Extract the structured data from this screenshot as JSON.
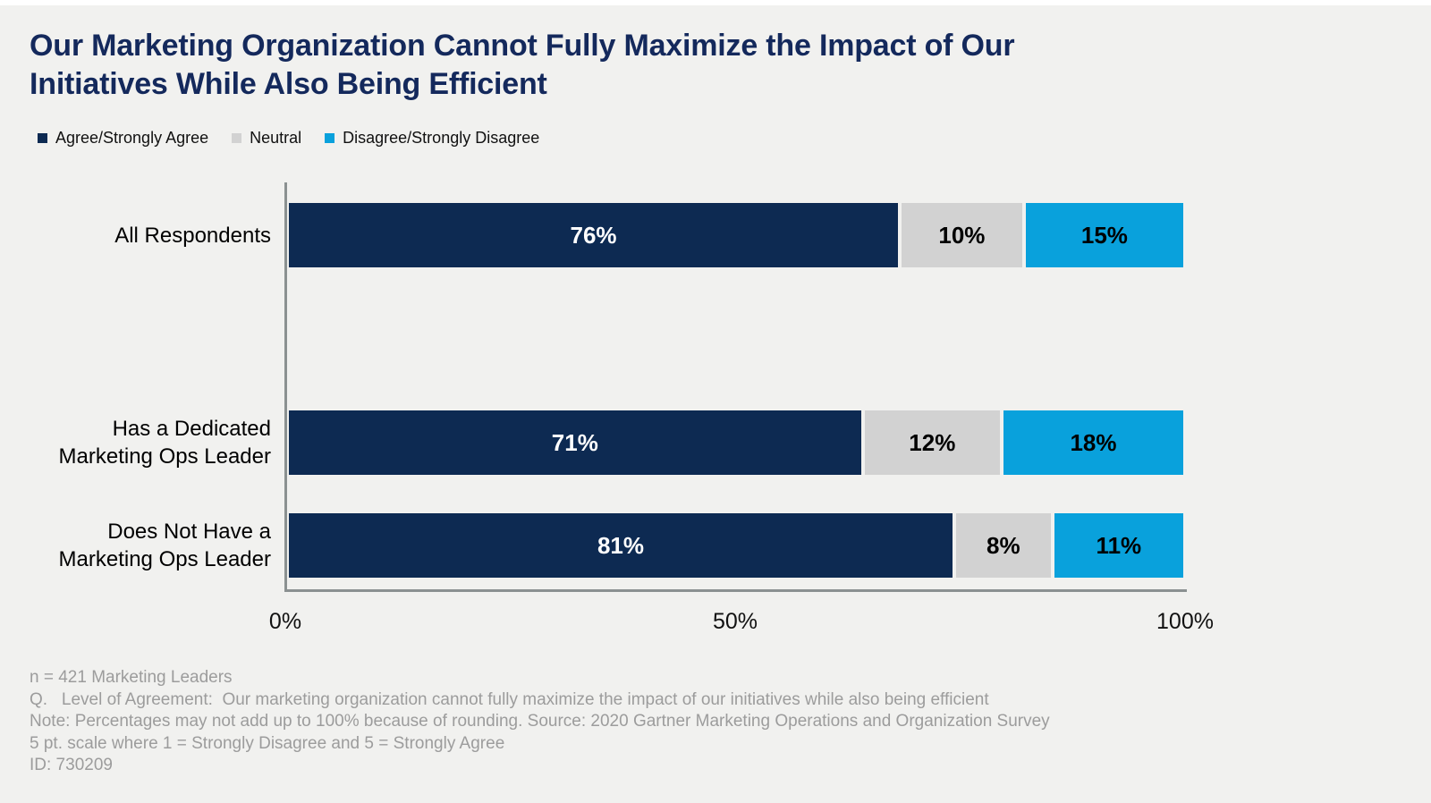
{
  "title": {
    "full": "Our Marketing Organization Cannot Fully Maximize the Impact of Our Initiatives While Also Being Efficient",
    "lines": [
      "Our Marketing Organization Cannot Fully Maximize the Impact of Our",
      "Initiatives While Also Being Efficient"
    ]
  },
  "legend": {
    "items": [
      {
        "label": "Agree/Strongly Agree",
        "color": "#0d2a52"
      },
      {
        "label": "Neutral",
        "color": "#d2d2d2"
      },
      {
        "label": "Disagree/Strongly Disagree",
        "color": "#09a1dc"
      }
    ]
  },
  "chart_data": {
    "type": "bar",
    "orientation": "horizontal",
    "stacked": true,
    "title": "Our Marketing Organization Cannot Fully Maximize the Impact of Our Initiatives While Also Being Efficient",
    "categories": [
      "All Respondents",
      "Has a Dedicated Marketing Ops Leader",
      "Does Not Have a Marketing Ops Leader"
    ],
    "series": [
      {
        "name": "Agree/Strongly Agree",
        "color": "#0d2a52",
        "values": [
          76,
          71,
          81
        ]
      },
      {
        "name": "Neutral",
        "color": "#d2d2d2",
        "values": [
          10,
          12,
          8
        ]
      },
      {
        "name": "Disagree/Strongly Disagree",
        "color": "#09a1dc",
        "values": [
          15,
          18,
          11
        ]
      }
    ],
    "rows": [
      {
        "label_lines": [
          "All Respondents"
        ],
        "values": [
          76,
          10,
          15
        ],
        "labels": [
          "76%",
          "10%",
          "15%"
        ]
      },
      {
        "label_lines": [
          "Has a Dedicated",
          "Marketing Ops Leader"
        ],
        "values": [
          71,
          12,
          18
        ],
        "labels": [
          "71%",
          "12%",
          "18%"
        ]
      },
      {
        "label_lines": [
          "Does Not Have a",
          "Marketing Ops Leader"
        ],
        "values": [
          81,
          8,
          11
        ],
        "labels": [
          "81%",
          "8%",
          "11%"
        ]
      }
    ],
    "x_axis": {
      "ticks": [
        "0%",
        "50%",
        "100%"
      ],
      "range": [
        0,
        100
      ]
    },
    "legend_position": "top",
    "grid": false,
    "value_suffix": "%"
  },
  "footnotes": {
    "lines": [
      "n = 421 Marketing Leaders",
      "Q.   Level of Agreement:  Our marketing organization cannot fully maximize the impact of our initiatives while also being efficient",
      "Note: Percentages may not add up to 100% because of rounding. Source: 2020 Gartner Marketing Operations and Organization Survey",
      "5 pt. scale where 1 = Strongly Disagree and 5 = Strongly Agree",
      "ID: 730209"
    ]
  },
  "colors": {
    "background": "#f1f1ef",
    "title_text": "#14295c",
    "axis_line": "#8b9191",
    "footnote_text": "#9c9c9c",
    "bar_label_on_dark": "#ffffff",
    "bar_label_on_light": "#000000"
  }
}
